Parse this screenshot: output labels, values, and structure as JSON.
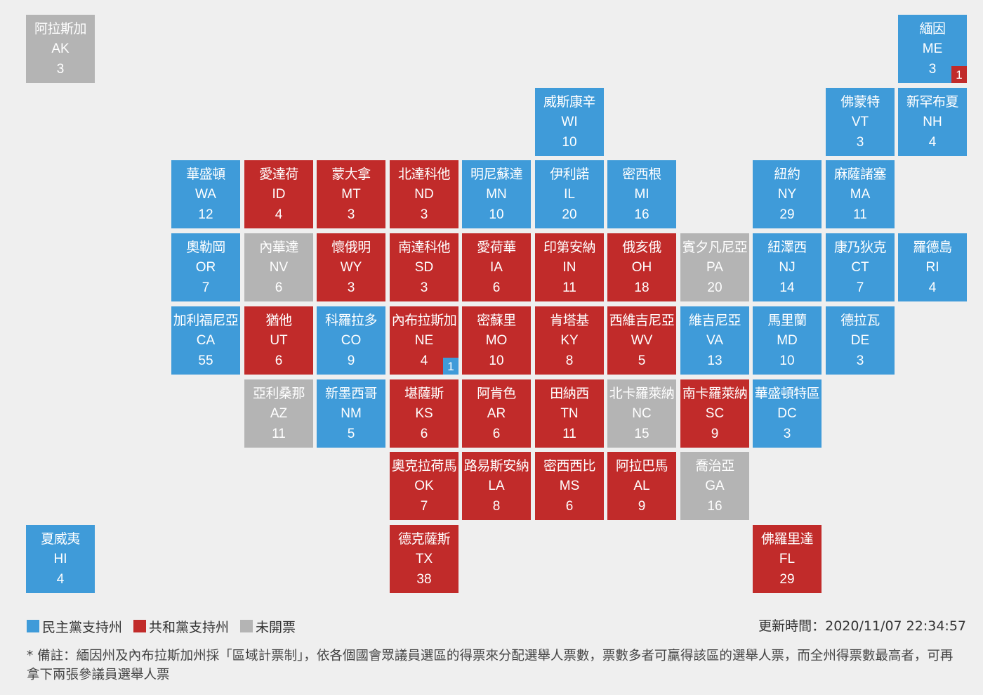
{
  "colors": {
    "dem": "#3f9bd9",
    "rep": "#c12b2a",
    "none": "#b4b4b4"
  },
  "states": [
    {
      "name": "阿拉斯加",
      "abbr": "AK",
      "ev": 3,
      "status": "none",
      "row": 0,
      "col": 0
    },
    {
      "name": "緬因",
      "abbr": "ME",
      "ev": 3,
      "status": "dem",
      "row": 0,
      "col": 12,
      "split": {
        "value": "1",
        "status": "rep"
      }
    },
    {
      "name": "威斯康辛",
      "abbr": "WI",
      "ev": 10,
      "status": "dem",
      "row": 1,
      "col": 7
    },
    {
      "name": "佛蒙特",
      "abbr": "VT",
      "ev": 3,
      "status": "dem",
      "row": 1,
      "col": 11
    },
    {
      "name": "新罕布夏",
      "abbr": "NH",
      "ev": 4,
      "status": "dem",
      "row": 1,
      "col": 12
    },
    {
      "name": "華盛頓",
      "abbr": "WA",
      "ev": 12,
      "status": "dem",
      "row": 2,
      "col": 2
    },
    {
      "name": "愛達荷",
      "abbr": "ID",
      "ev": 4,
      "status": "rep",
      "row": 2,
      "col": 3
    },
    {
      "name": "蒙大拿",
      "abbr": "MT",
      "ev": 3,
      "status": "rep",
      "row": 2,
      "col": 4
    },
    {
      "name": "北達科他",
      "abbr": "ND",
      "ev": 3,
      "status": "rep",
      "row": 2,
      "col": 5
    },
    {
      "name": "明尼蘇達",
      "abbr": "MN",
      "ev": 10,
      "status": "dem",
      "row": 2,
      "col": 6
    },
    {
      "name": "伊利諾",
      "abbr": "IL",
      "ev": 20,
      "status": "dem",
      "row": 2,
      "col": 7
    },
    {
      "name": "密西根",
      "abbr": "MI",
      "ev": 16,
      "status": "dem",
      "row": 2,
      "col": 8
    },
    {
      "name": "紐約",
      "abbr": "NY",
      "ev": 29,
      "status": "dem",
      "row": 2,
      "col": 10
    },
    {
      "name": "麻薩諸塞",
      "abbr": "MA",
      "ev": 11,
      "status": "dem",
      "row": 2,
      "col": 11
    },
    {
      "name": "奧勒岡",
      "abbr": "OR",
      "ev": 7,
      "status": "dem",
      "row": 3,
      "col": 2
    },
    {
      "name": "內華達",
      "abbr": "NV",
      "ev": 6,
      "status": "none",
      "row": 3,
      "col": 3
    },
    {
      "name": "懷俄明",
      "abbr": "WY",
      "ev": 3,
      "status": "rep",
      "row": 3,
      "col": 4
    },
    {
      "name": "南達科他",
      "abbr": "SD",
      "ev": 3,
      "status": "rep",
      "row": 3,
      "col": 5
    },
    {
      "name": "愛荷華",
      "abbr": "IA",
      "ev": 6,
      "status": "rep",
      "row": 3,
      "col": 6
    },
    {
      "name": "印第安納",
      "abbr": "IN",
      "ev": 11,
      "status": "rep",
      "row": 3,
      "col": 7
    },
    {
      "name": "俄亥俄",
      "abbr": "OH",
      "ev": 18,
      "status": "rep",
      "row": 3,
      "col": 8
    },
    {
      "name": "賓夕凡尼亞",
      "abbr": "PA",
      "ev": 20,
      "status": "none",
      "row": 3,
      "col": 9
    },
    {
      "name": "紐澤西",
      "abbr": "NJ",
      "ev": 14,
      "status": "dem",
      "row": 3,
      "col": 10
    },
    {
      "name": "康乃狄克",
      "abbr": "CT",
      "ev": 7,
      "status": "dem",
      "row": 3,
      "col": 11
    },
    {
      "name": "羅德島",
      "abbr": "RI",
      "ev": 4,
      "status": "dem",
      "row": 3,
      "col": 12
    },
    {
      "name": "加利福尼亞",
      "abbr": "CA",
      "ev": 55,
      "status": "dem",
      "row": 4,
      "col": 2
    },
    {
      "name": "猶他",
      "abbr": "UT",
      "ev": 6,
      "status": "rep",
      "row": 4,
      "col": 3
    },
    {
      "name": "科羅拉多",
      "abbr": "CO",
      "ev": 9,
      "status": "dem",
      "row": 4,
      "col": 4
    },
    {
      "name": "內布拉斯加",
      "abbr": "NE",
      "ev": 4,
      "status": "rep",
      "row": 4,
      "col": 5,
      "split": {
        "value": "1",
        "status": "dem"
      }
    },
    {
      "name": "密蘇里",
      "abbr": "MO",
      "ev": 10,
      "status": "rep",
      "row": 4,
      "col": 6
    },
    {
      "name": "肯塔基",
      "abbr": "KY",
      "ev": 8,
      "status": "rep",
      "row": 4,
      "col": 7
    },
    {
      "name": "西維吉尼亞",
      "abbr": "WV",
      "ev": 5,
      "status": "rep",
      "row": 4,
      "col": 8
    },
    {
      "name": "維吉尼亞",
      "abbr": "VA",
      "ev": 13,
      "status": "dem",
      "row": 4,
      "col": 9
    },
    {
      "name": "馬里蘭",
      "abbr": "MD",
      "ev": 10,
      "status": "dem",
      "row": 4,
      "col": 10
    },
    {
      "name": "德拉瓦",
      "abbr": "DE",
      "ev": 3,
      "status": "dem",
      "row": 4,
      "col": 11
    },
    {
      "name": "亞利桑那",
      "abbr": "AZ",
      "ev": 11,
      "status": "none",
      "row": 5,
      "col": 3
    },
    {
      "name": "新墨西哥",
      "abbr": "NM",
      "ev": 5,
      "status": "dem",
      "row": 5,
      "col": 4
    },
    {
      "name": "堪薩斯",
      "abbr": "KS",
      "ev": 6,
      "status": "rep",
      "row": 5,
      "col": 5
    },
    {
      "name": "阿肯色",
      "abbr": "AR",
      "ev": 6,
      "status": "rep",
      "row": 5,
      "col": 6
    },
    {
      "name": "田納西",
      "abbr": "TN",
      "ev": 11,
      "status": "rep",
      "row": 5,
      "col": 7
    },
    {
      "name": "北卡羅萊納",
      "abbr": "NC",
      "ev": 15,
      "status": "none",
      "row": 5,
      "col": 8
    },
    {
      "name": "南卡羅萊納",
      "abbr": "SC",
      "ev": 9,
      "status": "rep",
      "row": 5,
      "col": 9
    },
    {
      "name": "華盛頓特區",
      "abbr": "DC",
      "ev": 3,
      "status": "dem",
      "row": 5,
      "col": 10
    },
    {
      "name": "奧克拉荷馬",
      "abbr": "OK",
      "ev": 7,
      "status": "rep",
      "row": 6,
      "col": 5
    },
    {
      "name": "路易斯安納",
      "abbr": "LA",
      "ev": 8,
      "status": "rep",
      "row": 6,
      "col": 6
    },
    {
      "name": "密西西比",
      "abbr": "MS",
      "ev": 6,
      "status": "rep",
      "row": 6,
      "col": 7
    },
    {
      "name": "阿拉巴馬",
      "abbr": "AL",
      "ev": 9,
      "status": "rep",
      "row": 6,
      "col": 8
    },
    {
      "name": "喬治亞",
      "abbr": "GA",
      "ev": 16,
      "status": "none",
      "row": 6,
      "col": 9
    },
    {
      "name": "夏威夷",
      "abbr": "HI",
      "ev": 4,
      "status": "dem",
      "row": 7,
      "col": 0
    },
    {
      "name": "德克薩斯",
      "abbr": "TX",
      "ev": 38,
      "status": "rep",
      "row": 7,
      "col": 5
    },
    {
      "name": "佛羅里達",
      "abbr": "FL",
      "ev": 29,
      "status": "rep",
      "row": 7,
      "col": 10
    }
  ],
  "legend": [
    {
      "label": "民主黨支持州",
      "status": "dem"
    },
    {
      "label": "共和黨支持州",
      "status": "rep"
    },
    {
      "label": "未開票",
      "status": "none"
    }
  ],
  "updated": "更新時間：2020/11/07 22:34:57",
  "note": "* 備註：緬因州及內布拉斯加州採「區域計票制」，依各個國會眾議員選區的得票來分配選舉人票數，票數多者可贏得該區的選舉人票，而全州得票數最高者，可再拿下兩張參議員選舉人票"
}
